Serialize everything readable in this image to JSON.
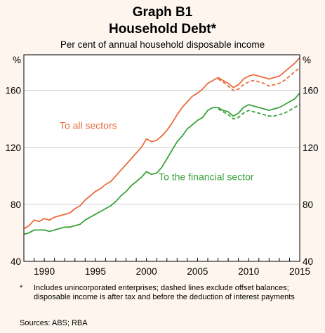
{
  "title": "Graph B1",
  "subtitle": "Household Debt*",
  "unit_note": "Per cent of annual household disposable income",
  "footnote_mark": "*",
  "footnote_text": "Includes unincorporated enterprises; dashed lines exclude offset balances; disposable income is after tax and before the deduction of interest payments",
  "sources": "Sources:  ABS; RBA",
  "colors": {
    "all_sectors": "#e96b3c",
    "financial_sector": "#3aa23a",
    "background": "#fdf5ee",
    "grid": "#cccccc"
  },
  "chart_data": {
    "type": "line",
    "xlim": [
      1988,
      2015
    ],
    "ylim": [
      40,
      185
    ],
    "yticks": [
      40,
      80,
      120,
      160
    ],
    "xticks": [
      1990,
      1995,
      2000,
      2005,
      2010,
      2015
    ],
    "left_unit": "%",
    "right_unit": "%",
    "grid": true,
    "series": [
      {
        "name": "To all sectors",
        "color": "#e96b3c",
        "dash": false,
        "x": [
          1988,
          1988.5,
          1989,
          1989.5,
          1990,
          1990.5,
          1991,
          1991.5,
          1992,
          1992.5,
          1993,
          1993.5,
          1994,
          1994.5,
          1995,
          1995.5,
          1996,
          1996.5,
          1997,
          1997.5,
          1998,
          1998.5,
          1999,
          1999.5,
          2000,
          2000.5,
          2001,
          2001.5,
          2002,
          2002.5,
          2003,
          2003.5,
          2004,
          2004.5,
          2005,
          2005.5,
          2006,
          2006.5,
          2007,
          2007.5,
          2008,
          2008.5,
          2009,
          2009.5,
          2010,
          2010.5,
          2011,
          2011.5,
          2012,
          2012.5,
          2013,
          2013.5,
          2014,
          2014.5,
          2015
        ],
        "values": [
          63,
          65,
          69,
          68,
          70,
          69,
          71,
          72,
          73,
          74,
          77,
          79,
          83,
          86,
          89,
          91,
          94,
          96,
          100,
          104,
          108,
          112,
          116,
          120,
          126,
          124,
          125,
          128,
          132,
          137,
          143,
          148,
          152,
          156,
          158,
          161,
          165,
          167,
          169,
          167,
          165,
          162,
          164,
          168,
          170,
          171,
          170,
          169,
          168,
          169,
          170,
          173,
          176,
          179,
          183
        ]
      },
      {
        "name": "",
        "color": "#e96b3c",
        "dash": true,
        "x": [
          2007,
          2007.5,
          2008,
          2008.5,
          2009,
          2009.5,
          2010,
          2010.5,
          2011,
          2011.5,
          2012,
          2012.5,
          2013,
          2013.5,
          2014,
          2014.5,
          2015
        ],
        "values": [
          168,
          166,
          163,
          160,
          161,
          164,
          166,
          167,
          166,
          165,
          163,
          164,
          165,
          167,
          170,
          173,
          176
        ]
      },
      {
        "name": "To the financial sector",
        "color": "#3aa23a",
        "dash": false,
        "x": [
          1988,
          1988.5,
          1989,
          1989.5,
          1990,
          1990.5,
          1991,
          1991.5,
          1992,
          1992.5,
          1993,
          1993.5,
          1994,
          1994.5,
          1995,
          1995.5,
          1996,
          1996.5,
          1997,
          1997.5,
          1998,
          1998.5,
          1999,
          1999.5,
          2000,
          2000.5,
          2001,
          2001.5,
          2002,
          2002.5,
          2003,
          2003.5,
          2004,
          2004.5,
          2005,
          2005.5,
          2006,
          2006.5,
          2007,
          2007.5,
          2008,
          2008.5,
          2009,
          2009.5,
          2010,
          2010.5,
          2011,
          2011.5,
          2012,
          2012.5,
          2013,
          2013.5,
          2014,
          2014.5,
          2015
        ],
        "values": [
          59,
          60,
          62,
          62,
          62,
          61,
          62,
          63,
          64,
          64,
          65,
          66,
          69,
          71,
          73,
          75,
          77,
          79,
          82,
          86,
          89,
          93,
          96,
          99,
          103,
          101,
          102,
          106,
          112,
          118,
          124,
          128,
          133,
          136,
          139,
          141,
          146,
          148,
          148,
          146,
          145,
          142,
          144,
          148,
          150,
          149,
          148,
          147,
          146,
          147,
          148,
          150,
          152,
          154,
          158
        ]
      },
      {
        "name": "",
        "color": "#3aa23a",
        "dash": true,
        "x": [
          2007,
          2007.5,
          2008,
          2008.5,
          2009,
          2009.5,
          2010,
          2010.5,
          2011,
          2011.5,
          2012,
          2012.5,
          2013,
          2013.5,
          2014,
          2014.5,
          2015
        ],
        "values": [
          147,
          145,
          143,
          140,
          141,
          144,
          146,
          145,
          144,
          143,
          142,
          142,
          143,
          144,
          146,
          148,
          150
        ]
      }
    ],
    "annotations": [
      {
        "text": "To all sectors",
        "x": 1991.5,
        "y": 133,
        "color": "#e96b3c"
      },
      {
        "text": "To the financial sector",
        "x": 2001.2,
        "y": 97,
        "color": "#3aa23a"
      }
    ]
  }
}
